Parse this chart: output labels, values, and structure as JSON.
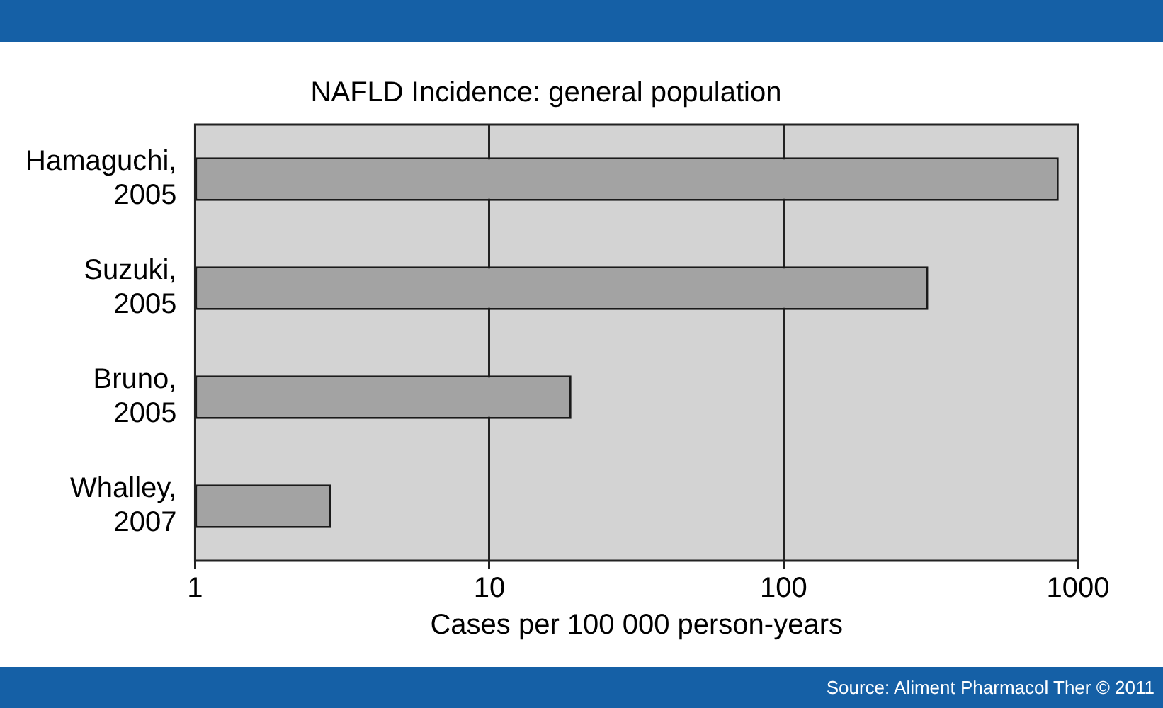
{
  "chart_data": {
    "type": "bar",
    "orientation": "horizontal",
    "title": "NAFLD Incidence: general population",
    "xlabel": "Cases per 100 000 person-years",
    "categories": [
      "Hamaguchi,\n2005",
      "Suzuki,\n2005",
      "Bruno,\n2005",
      "Whalley,\n2007"
    ],
    "values": [
      860,
      310,
      19,
      2.9
    ],
    "color": "#a3a3a3",
    "log": "x",
    "xlim": [
      1,
      1000
    ],
    "xticks": [
      1,
      10,
      100,
      1000
    ],
    "grid": "x",
    "annotations": [
      "Source: Aliment Pharmacol Ther © 2011"
    ]
  }
}
